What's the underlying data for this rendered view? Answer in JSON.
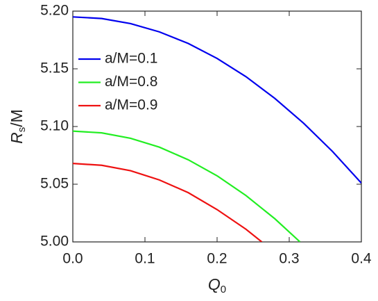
{
  "chart_data": {
    "type": "line",
    "xlabel": {
      "main": "Q",
      "sub": "0"
    },
    "ylabel": {
      "main": "R",
      "sub": "s",
      "rest": "/M"
    },
    "xlim": [
      0,
      0.4
    ],
    "ylim": [
      5.0,
      5.2
    ],
    "xticks": [
      {
        "value": 0,
        "label": "0.0"
      },
      0.1,
      0.2,
      0.3,
      0.4
    ],
    "yticks": [
      {
        "value": 5.0,
        "label": "5.00"
      },
      5.05,
      {
        "value": 5.1,
        "label": "5.10"
      },
      5.15,
      {
        "value": 5.2,
        "label": "5.20"
      }
    ],
    "legend": "top-left",
    "series": [
      {
        "name": "a/M=0.1",
        "color": "#0000ee",
        "x": [
          0,
          0.04,
          0.08,
          0.12,
          0.16,
          0.2,
          0.24,
          0.28,
          0.32,
          0.36,
          0.4
        ],
        "values": [
          5.195,
          5.1936,
          5.1892,
          5.182,
          5.172,
          5.159,
          5.1432,
          5.1244,
          5.1028,
          5.0784,
          5.051
        ]
      },
      {
        "name": "a/M=0.8",
        "color": "#22ee22",
        "x": [
          0,
          0.04,
          0.08,
          0.12,
          0.16,
          0.2,
          0.24,
          0.28,
          0.315
        ],
        "values": [
          5.096,
          5.0945,
          5.0898,
          5.0821,
          5.0712,
          5.0573,
          5.0402,
          5.0201,
          5.0
        ]
      },
      {
        "name": "a/M=0.9",
        "color": "#ee1111",
        "x": [
          0,
          0.04,
          0.08,
          0.12,
          0.16,
          0.2,
          0.24,
          0.262
        ],
        "values": [
          5.068,
          5.0664,
          5.0617,
          5.0537,
          5.0427,
          5.028,
          5.011,
          5.0
        ]
      }
    ]
  }
}
